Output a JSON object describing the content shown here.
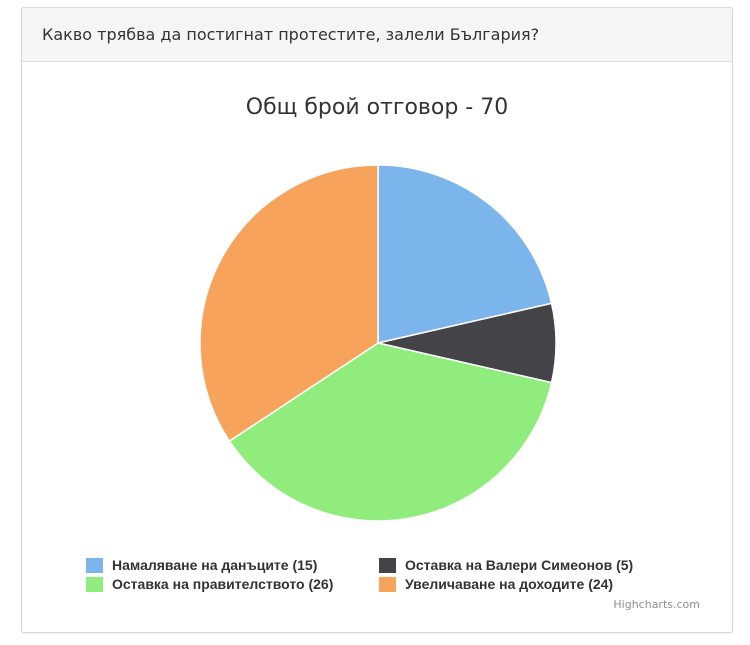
{
  "panel": {
    "title": "Какво трябва да постигнат протестите, залели България?"
  },
  "chart_data": {
    "type": "pie",
    "title": "Общ брой отговор - 70",
    "total": 70,
    "series": [
      {
        "name": "Намаляване на данъците",
        "value": 15,
        "color": "#7cb5ec",
        "legend_label": "Намаляване на данъците (15)"
      },
      {
        "name": "Оставка на Валери Симеонов",
        "value": 5,
        "color": "#434348",
        "legend_label": "Оставка на Валери Симеонов (5)"
      },
      {
        "name": "Оставка на правителството",
        "value": 26,
        "color": "#90ed7d",
        "legend_label": "Оставка на правителството (26)"
      },
      {
        "name": "Увеличаване на доходите",
        "value": 24,
        "color": "#f7a35c",
        "legend_label": "Увеличаване на доходите (24)"
      }
    ],
    "legend_position": "bottom",
    "credits": "Highcharts.com"
  }
}
